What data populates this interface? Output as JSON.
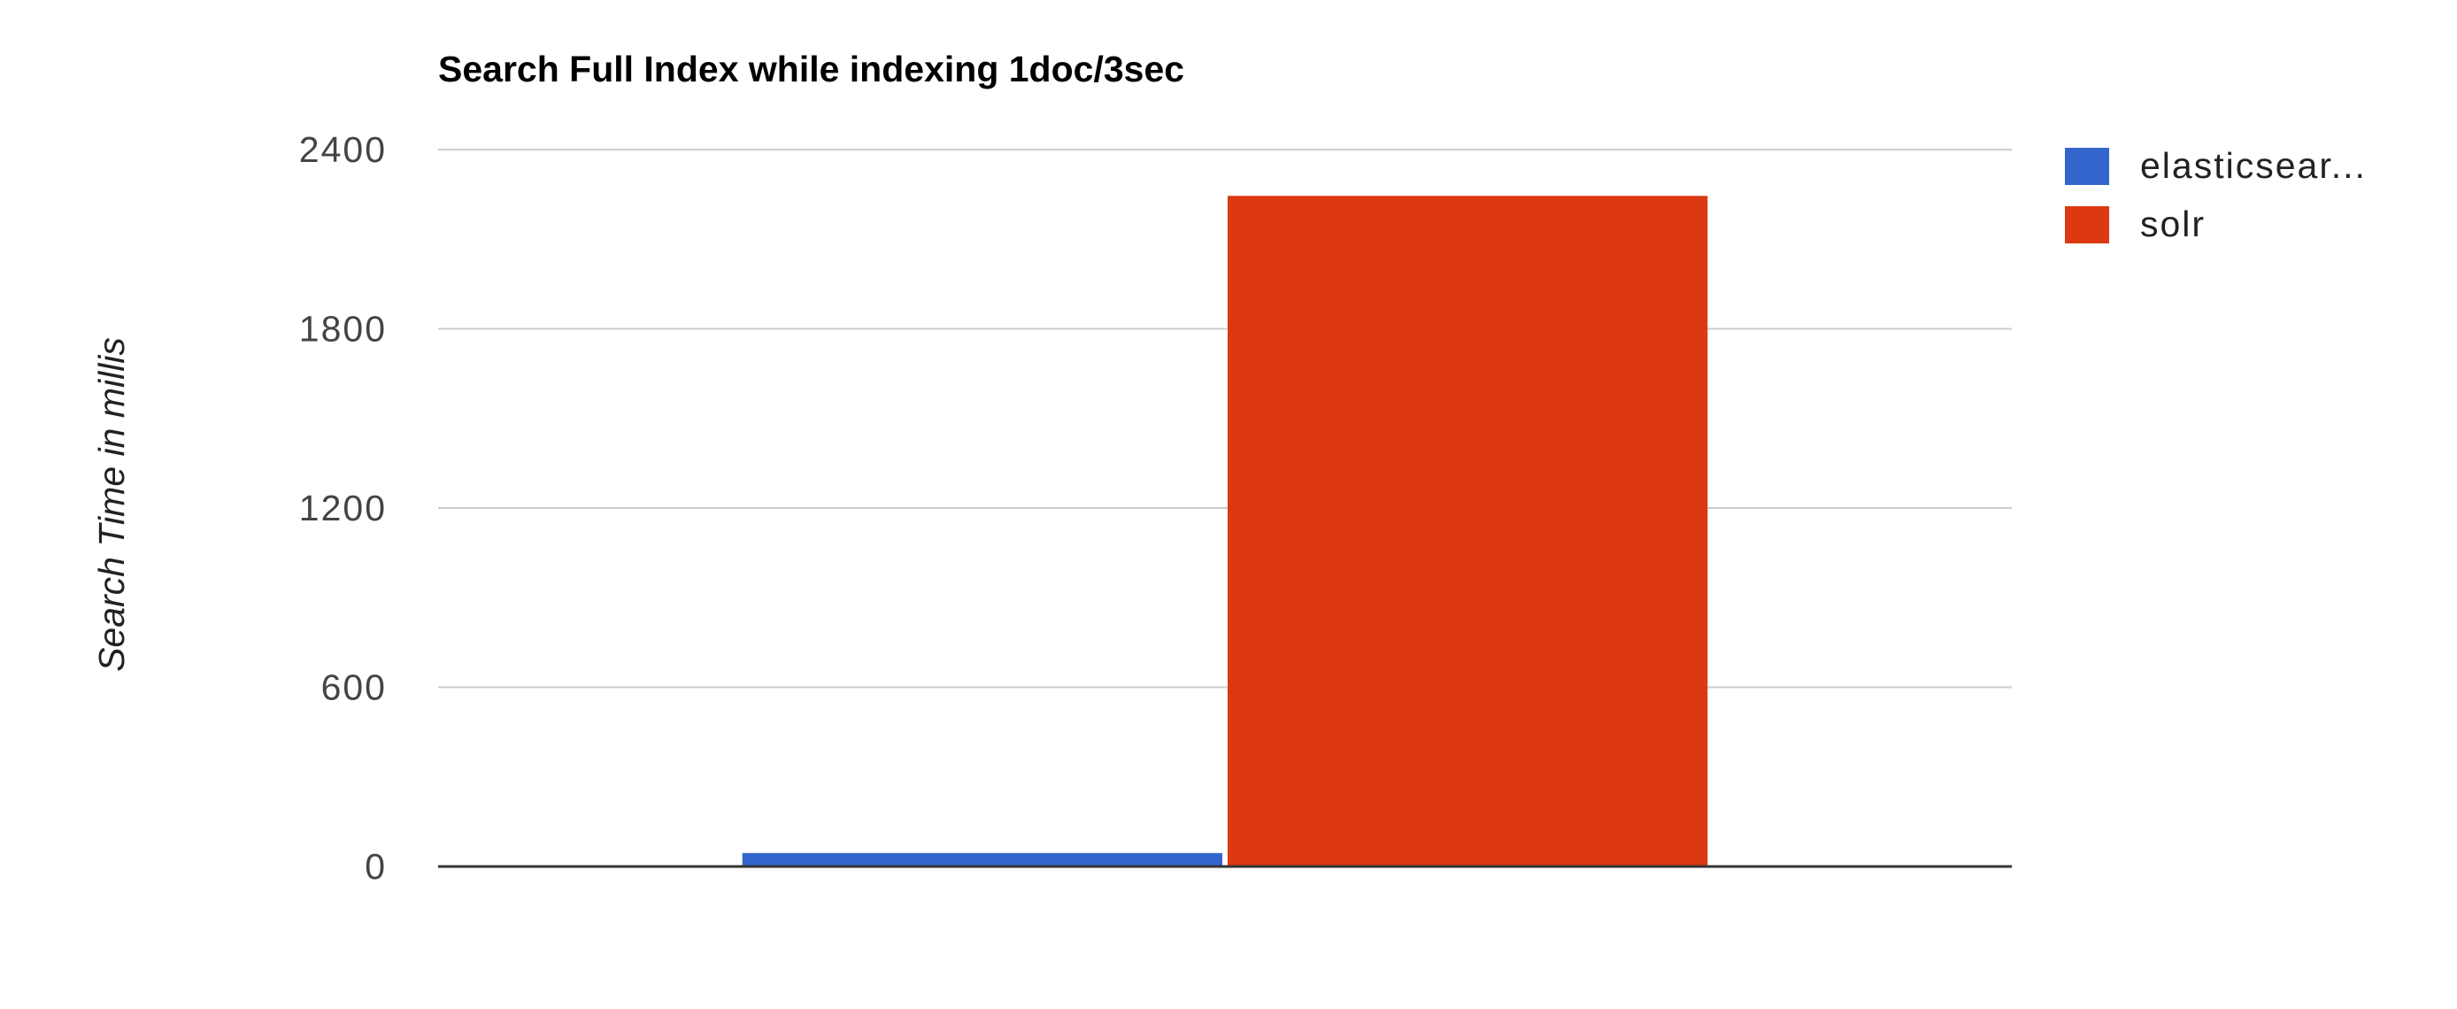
{
  "chart_data": {
    "type": "bar",
    "title": "Search Full Index while indexing 1doc/3sec",
    "xlabel": "",
    "ylabel": "Search Time in millis",
    "ylim": [
      0,
      2400
    ],
    "yticks": [
      0,
      600,
      1200,
      1800,
      2400
    ],
    "grid": true,
    "legend_position": "right",
    "categories": [
      ""
    ],
    "series": [
      {
        "name": "elasticsear...",
        "color": "#3366cc",
        "values": [
          45
        ]
      },
      {
        "name": "solr",
        "color": "#dc3912",
        "values": [
          2245
        ]
      }
    ]
  }
}
